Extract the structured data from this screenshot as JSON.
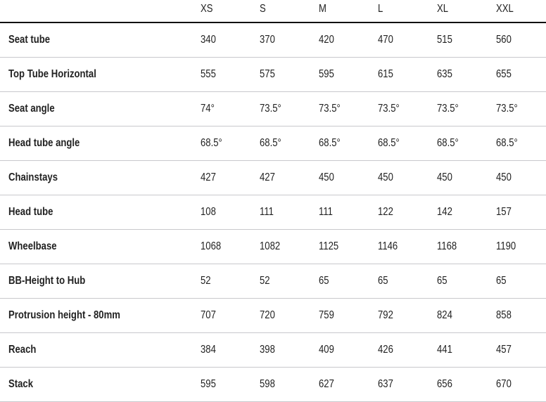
{
  "sizes": [
    "XS",
    "S",
    "M",
    "L",
    "XL",
    "XXL"
  ],
  "rows": [
    {
      "label": "Seat tube",
      "values": [
        "340",
        "370",
        "420",
        "470",
        "515",
        "560"
      ]
    },
    {
      "label": "Top Tube Horizontal",
      "values": [
        "555",
        "575",
        "595",
        "615",
        "635",
        "655"
      ]
    },
    {
      "label": "Seat angle",
      "values": [
        "74°",
        "73.5°",
        "73.5°",
        "73.5°",
        "73.5°",
        "73.5°"
      ]
    },
    {
      "label": "Head tube angle",
      "values": [
        "68.5°",
        "68.5°",
        "68.5°",
        "68.5°",
        "68.5°",
        "68.5°"
      ]
    },
    {
      "label": "Chainstays",
      "values": [
        "427",
        "427",
        "450",
        "450",
        "450",
        "450"
      ]
    },
    {
      "label": "Head tube",
      "values": [
        "108",
        "111",
        "111",
        "122",
        "142",
        "157"
      ]
    },
    {
      "label": "Wheelbase",
      "values": [
        "1068",
        "1082",
        "1125",
        "1146",
        "1168",
        "1190"
      ]
    },
    {
      "label": "BB-Height to Hub",
      "values": [
        "52",
        "52",
        "65",
        "65",
        "65",
        "65"
      ]
    },
    {
      "label": "Protrusion height - 80mm",
      "values": [
        "707",
        "720",
        "759",
        "792",
        "824",
        "858"
      ]
    },
    {
      "label": "Reach",
      "values": [
        "384",
        "398",
        "409",
        "426",
        "441",
        "457"
      ]
    },
    {
      "label": "Stack",
      "values": [
        "595",
        "598",
        "627",
        "637",
        "656",
        "670"
      ]
    }
  ]
}
